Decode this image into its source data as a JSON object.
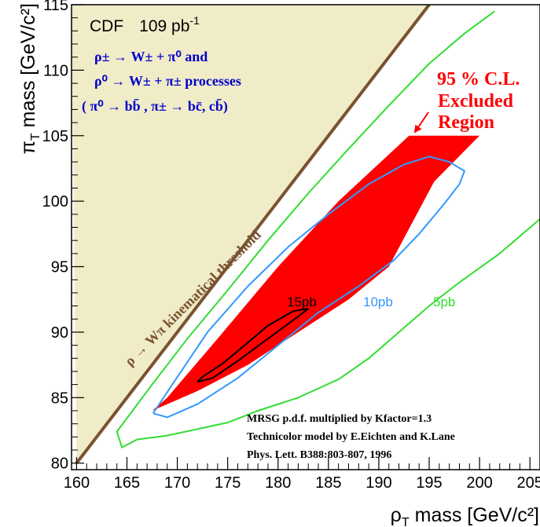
{
  "chart_data": {
    "type": "contour",
    "xlabel": "ρ",
    "xlabel_sub": "T",
    "xlabel_unit": "mass [GeV/c²]",
    "ylabel": "π",
    "ylabel_sub": "T",
    "ylabel_unit": "mass [GeV/c²]",
    "xlim": [
      159.5,
      206
    ],
    "ylim": [
      79.5,
      115
    ],
    "xticks": [
      "160",
      "165",
      "170",
      "175",
      "180",
      "185",
      "190",
      "195",
      "200",
      "205"
    ],
    "yticks": [
      "80",
      "85",
      "90",
      "95",
      "100",
      "105",
      "110",
      "115"
    ],
    "experiment": "CDF",
    "luminosity": "109 pb",
    "luminosity_sup": "-1",
    "process_lines": [
      "ρ± → W± + π⁰ and",
      "ρ⁰ → W± + π± processes",
      "( π⁰ → bb̄ , π± → bc̄, cb̄)"
    ],
    "excluded_region_label": [
      "95 % C.L.",
      "Excluded",
      "Region"
    ],
    "threshold_label": "ρ → Wπ kinematical threshold",
    "threshold_line": [
      [
        160,
        80
      ],
      [
        195,
        115
      ]
    ],
    "excluded_region": [
      [
        167.5,
        84
      ],
      [
        172,
        85.5
      ],
      [
        177,
        87.5
      ],
      [
        182,
        90
      ],
      [
        187,
        92.5
      ],
      [
        191,
        95
      ],
      [
        195.5,
        101.5
      ],
      [
        200,
        105
      ],
      [
        193,
        105
      ],
      [
        186,
        100
      ],
      [
        180,
        95
      ],
      [
        174,
        89.5
      ],
      [
        169,
        85
      ]
    ],
    "series": [
      {
        "name": "15pb",
        "color": "#000000",
        "points": [
          [
            172,
            86.2
          ],
          [
            173.5,
            86.5
          ],
          [
            176,
            87.8
          ],
          [
            179,
            89.5
          ],
          [
            182,
            91.2
          ],
          [
            183,
            91.8
          ],
          [
            181.5,
            91.6
          ],
          [
            179,
            90.5
          ],
          [
            177,
            89.2
          ],
          [
            174.5,
            87.6
          ],
          [
            172.5,
            86.6
          ],
          [
            172,
            86.2
          ]
        ]
      },
      {
        "name": "10pb",
        "color": "#3399ff",
        "points": [
          [
            167.6,
            83.8
          ],
          [
            169,
            83.5
          ],
          [
            172,
            84.5
          ],
          [
            176,
            86.5
          ],
          [
            180,
            89
          ],
          [
            184,
            91.5
          ],
          [
            188,
            93.5
          ],
          [
            191.5,
            95.5
          ],
          [
            194,
            97.5
          ],
          [
            196.5,
            99.8
          ],
          [
            198,
            101.3
          ],
          [
            198.5,
            102.3
          ],
          [
            197,
            103
          ],
          [
            195,
            103.4
          ],
          [
            192.5,
            102.8
          ],
          [
            189,
            101.3
          ],
          [
            185,
            99
          ],
          [
            181,
            96.5
          ],
          [
            177,
            93.5
          ],
          [
            173,
            90
          ],
          [
            169.5,
            86
          ],
          [
            167.6,
            83.8
          ]
        ]
      },
      {
        "name": "5pb",
        "color": "#33dd33",
        "points": [
          [
            207,
            99.3
          ],
          [
            202,
            96
          ],
          [
            198,
            93.8
          ],
          [
            195,
            92
          ],
          [
            192,
            90
          ],
          [
            189,
            88
          ],
          [
            186,
            86.4
          ],
          [
            182,
            85
          ],
          [
            178,
            84
          ],
          [
            175,
            83.1
          ],
          [
            172,
            82.6
          ],
          [
            169,
            82.1
          ],
          [
            166,
            81.8
          ],
          [
            164.5,
            81.2
          ],
          [
            164,
            82.4
          ],
          [
            167.5,
            86
          ],
          [
            171,
            89.5
          ],
          [
            175,
            93.2
          ],
          [
            179,
            97
          ],
          [
            183,
            100.6
          ],
          [
            187,
            104
          ],
          [
            191,
            107.3
          ],
          [
            195,
            110.5
          ],
          [
            198.5,
            112.8
          ],
          [
            201.5,
            114.5
          ]
        ]
      }
    ],
    "annotations": [
      "MRSG p.d.f.  multiplied by Kfactor=1.3",
      "Technicolor model by E.Eichten and K.Lane",
      "Phys. Lett. B388:803-807, 1996"
    ],
    "grid": false,
    "legend": "none"
  },
  "colors": {
    "excluded_fill": "#ff0000",
    "threshold_fill": "#f0ecc8",
    "threshold_line": "#7a5230",
    "process_text": "#0000cc",
    "excluded_text": "#ff0000",
    "contour_15": "#000000",
    "contour_10": "#3399ff",
    "contour_5": "#33dd33"
  }
}
